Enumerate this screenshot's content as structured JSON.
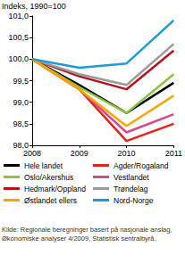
{
  "chart_data": {
    "type": "line",
    "y_label": "Indeks, 1990=100",
    "source": "Kilde: Regionale beregninger basert på nasjonale anslag, Økonomiske analyser 4/2009, Statistisk sentralbyrå.",
    "categories": [
      "2008",
      "2009",
      "2010",
      "2011"
    ],
    "series": [
      {
        "name": "Hele landet",
        "color": "#000000",
        "values": [
          100,
          99.4,
          98.75,
          99.45
        ]
      },
      {
        "name": "Agder/Rogaland",
        "color": "#e2231a",
        "values": [
          100,
          99.3,
          98.1,
          98.5
        ]
      },
      {
        "name": "Oslo/Akershus",
        "color": "#8cc63f",
        "values": [
          100,
          99.35,
          98.75,
          99.65
        ]
      },
      {
        "name": "Vestlandet",
        "color": "#d4498a",
        "values": [
          100,
          99.3,
          98.3,
          98.72
        ]
      },
      {
        "name": "Hedmark/Oppland",
        "color": "#b5121b",
        "values": [
          100,
          99.6,
          99.3,
          100.2
        ]
      },
      {
        "name": "Trøndelag",
        "color": "#999999",
        "values": [
          100,
          99.65,
          99.4,
          100.35
        ]
      },
      {
        "name": "Østlandet ellers",
        "color": "#f7a600",
        "values": [
          100,
          99.3,
          98.45,
          99.15
        ]
      },
      {
        "name": "Nord-Norge",
        "color": "#1f9ad6",
        "values": [
          100,
          99.8,
          99.9,
          100.9
        ]
      }
    ],
    "ylim": [
      98,
      101
    ],
    "yticks": [
      {
        "value": 98,
        "label": "98,0"
      },
      {
        "value": 98.5,
        "label": "98,5"
      },
      {
        "value": 99,
        "label": "99,0"
      },
      {
        "value": 99.5,
        "label": "99,5"
      },
      {
        "value": 100,
        "label": "100,0"
      },
      {
        "value": 100.5,
        "label": "100,5"
      },
      {
        "value": 101,
        "label": "101,0"
      }
    ],
    "grid": false,
    "legend": "bottom"
  }
}
